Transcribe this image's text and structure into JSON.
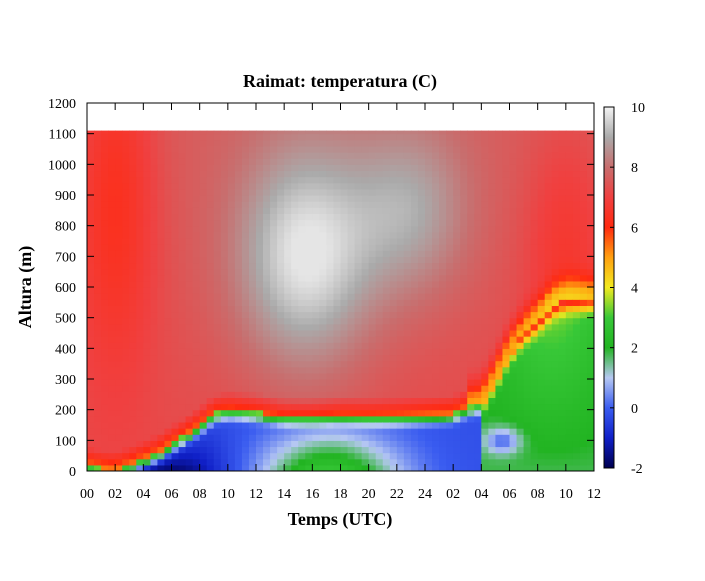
{
  "chart_data": {
    "type": "heatmap",
    "title": "Raimat: temperatura (C)",
    "xlabel": "Temps (UTC)",
    "ylabel": "Altura (m)",
    "x_tick_labels": [
      "00",
      "02",
      "04",
      "06",
      "08",
      "10",
      "12",
      "14",
      "16",
      "18",
      "20",
      "22",
      "24",
      "02",
      "04",
      "06",
      "08",
      "10",
      "12"
    ],
    "x_range_hours": [
      0,
      36
    ],
    "y_ticks": [
      0,
      100,
      200,
      300,
      400,
      500,
      600,
      700,
      800,
      900,
      1000,
      1100,
      1200
    ],
    "ylim": [
      0,
      1200
    ],
    "data_top_m": 1110,
    "colorbar": {
      "ticks": [
        -2,
        0,
        2,
        4,
        6,
        8,
        10
      ],
      "range": [
        -2,
        10
      ],
      "stops": [
        {
          "value": -2,
          "color": "#000050"
        },
        {
          "value": -1,
          "color": "#1020c8"
        },
        {
          "value": 0,
          "color": "#3a5cf0"
        },
        {
          "value": 1,
          "color": "#b6c8f2"
        },
        {
          "value": 2,
          "color": "#22b422"
        },
        {
          "value": 3,
          "color": "#38c838"
        },
        {
          "value": 4,
          "color": "#f2ea20"
        },
        {
          "value": 5,
          "color": "#ffa010"
        },
        {
          "value": 6,
          "color": "#ff2a10"
        },
        {
          "value": 7,
          "color": "#f04040"
        },
        {
          "value": 8,
          "color": "#c86e6e"
        },
        {
          "value": 9,
          "color": "#aaaaaa"
        },
        {
          "value": 10,
          "color": "#f4f4f4"
        }
      ]
    },
    "inversion_top_m": {
      "hours": [
        0,
        1,
        2,
        3,
        4,
        5,
        6,
        7,
        8,
        9,
        10,
        12,
        14,
        16,
        18,
        20,
        22,
        24,
        26,
        27,
        28,
        29,
        30,
        31,
        32,
        33,
        34,
        35,
        36
      ],
      "values": [
        20,
        10,
        5,
        20,
        40,
        60,
        90,
        120,
        150,
        190,
        200,
        195,
        180,
        180,
        185,
        180,
        180,
        185,
        190,
        210,
        220,
        300,
        390,
        450,
        490,
        540,
        560,
        560,
        560
      ]
    }
  }
}
